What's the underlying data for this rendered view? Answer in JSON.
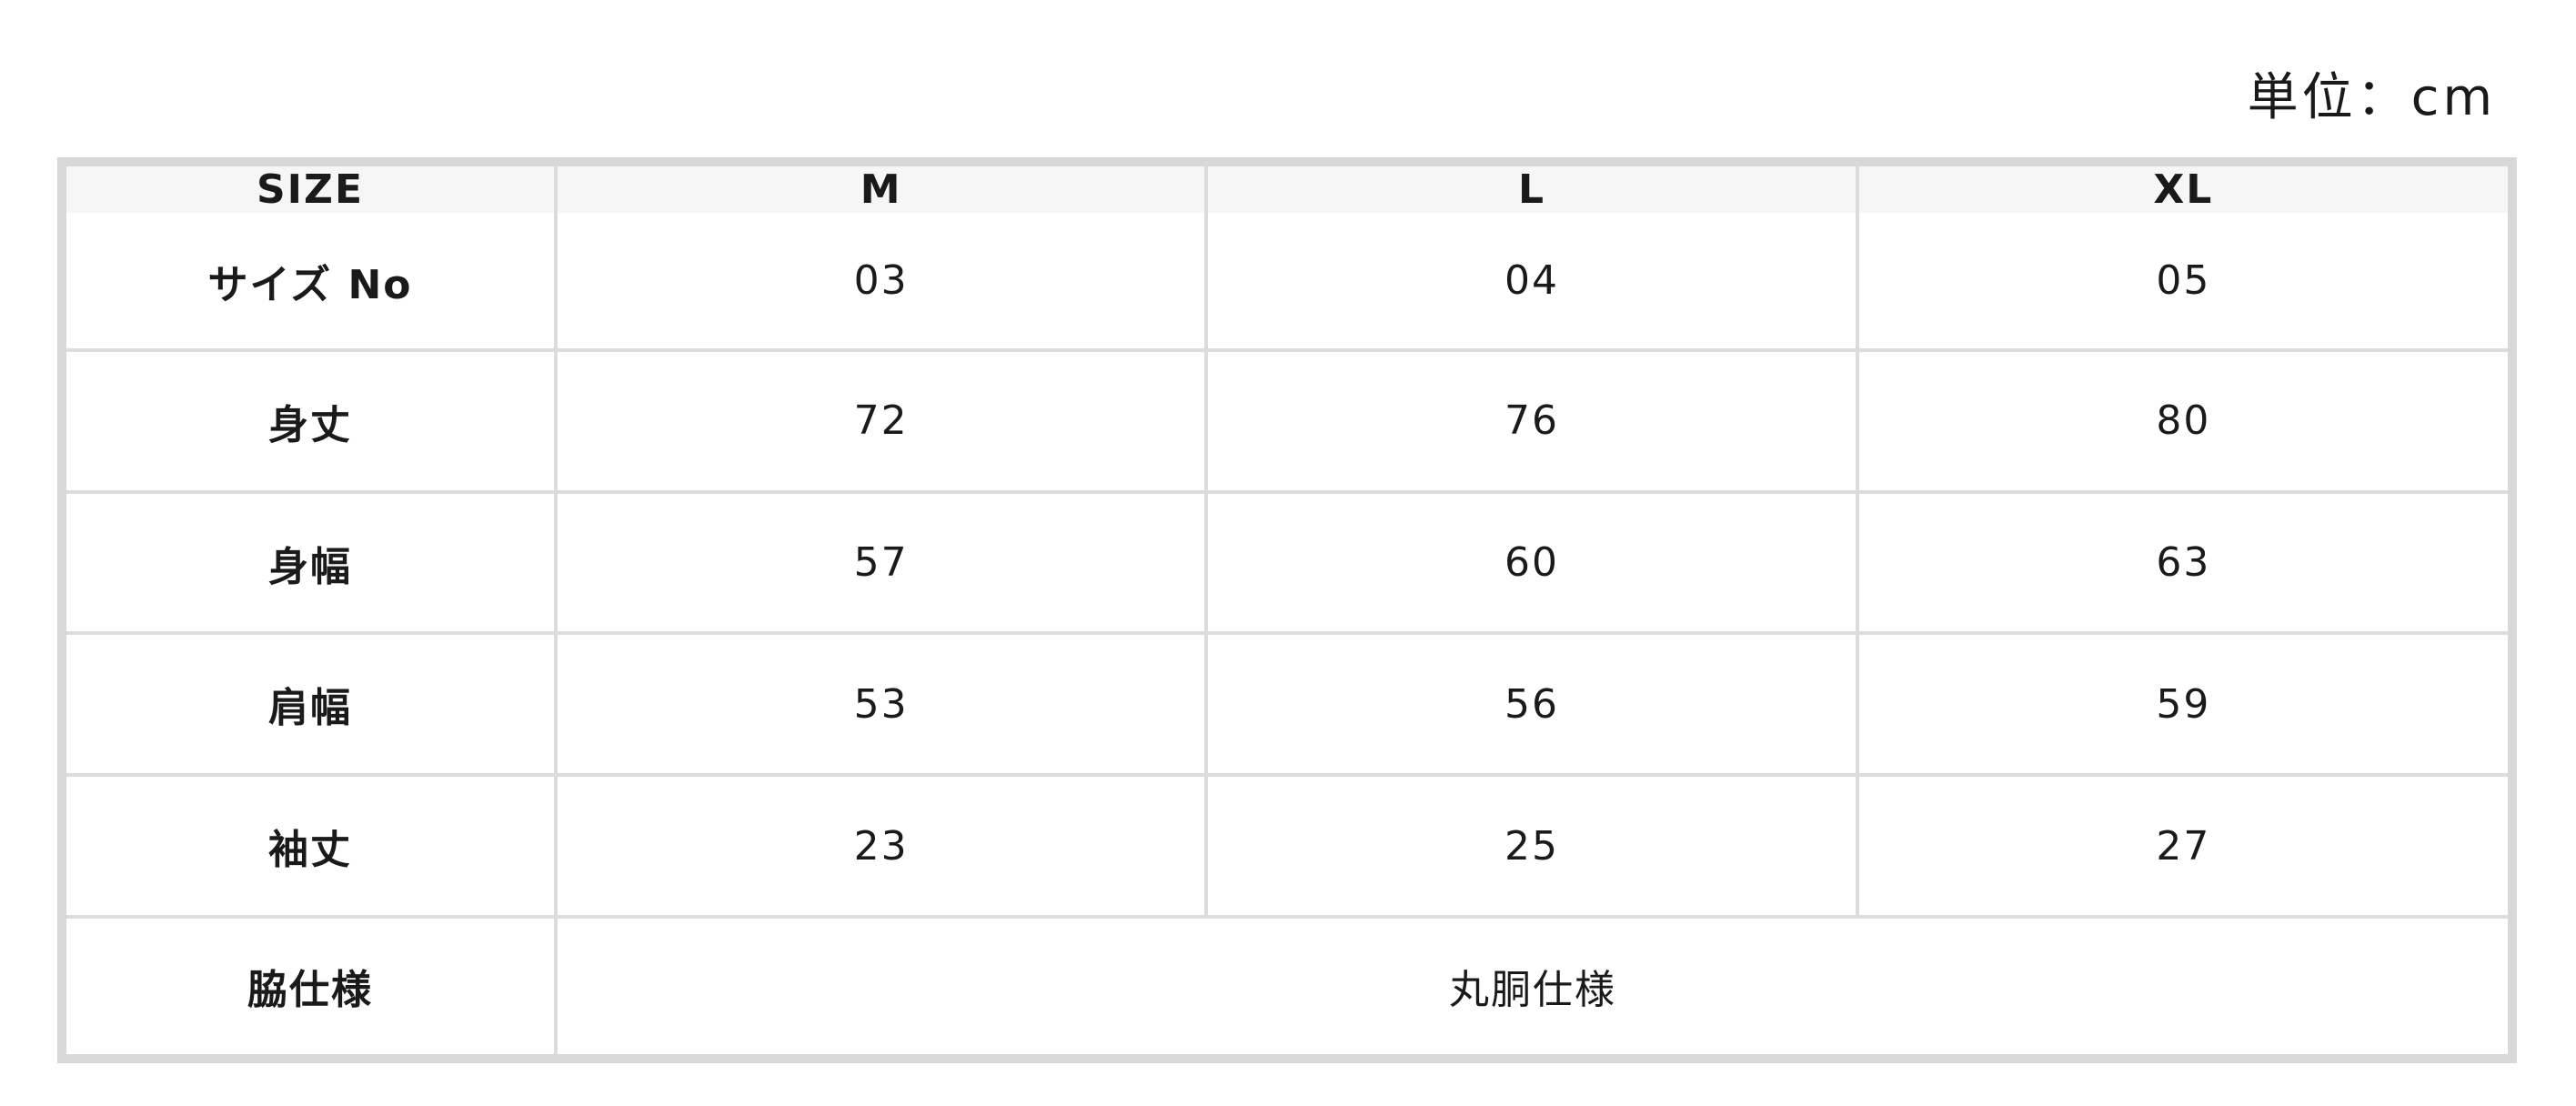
{
  "unit_label": "単位：cm",
  "header": [
    "SIZE",
    "M",
    "L",
    "XL"
  ],
  "rows": [
    {
      "label": "サイズ No",
      "values": [
        "03",
        "04",
        "05"
      ]
    },
    {
      "label": "身丈",
      "values": [
        "72",
        "76",
        "80"
      ]
    },
    {
      "label": "身幅",
      "values": [
        "57",
        "60",
        "63"
      ]
    },
    {
      "label": "肩幅",
      "values": [
        "53",
        "56",
        "59"
      ]
    },
    {
      "label": "袖丈",
      "values": [
        "23",
        "25",
        "27"
      ]
    }
  ],
  "side_spec": {
    "label": "脇仕様",
    "value": "丸胴仕様"
  },
  "colors": {
    "border": "#d8d8d8",
    "header_bg": "#f6f6f6"
  }
}
